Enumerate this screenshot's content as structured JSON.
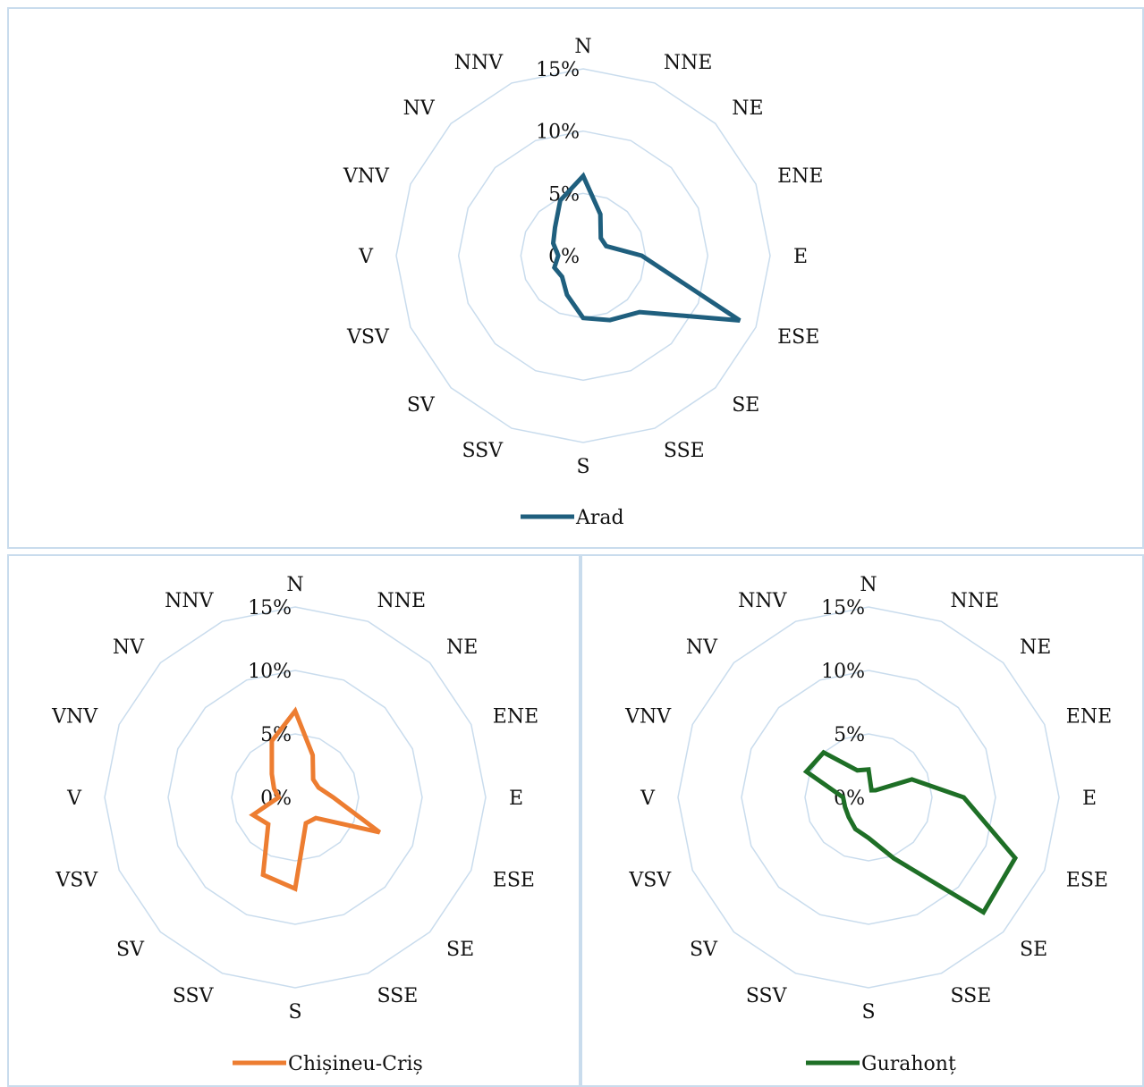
{
  "chart_data": [
    {
      "type": "radar",
      "categories": [
        "N",
        "NNE",
        "NE",
        "ENE",
        "E",
        "ESE",
        "SE",
        "SSE",
        "S",
        "SSV",
        "SV",
        "VSV",
        "V",
        "VNV",
        "NV",
        "NNV"
      ],
      "radial_ticks": [
        "0%",
        "5%",
        "10%",
        "15%"
      ],
      "rlim": [
        0,
        15
      ],
      "legend_position": "bottom",
      "series": [
        {
          "name": "Arad",
          "color": "#1f5f7e",
          "values": [
            6.4,
            3.6,
            2.0,
            2.0,
            4.7,
            13.6,
            6.4,
            5.6,
            5.0,
            3.4,
            2.4,
            2.5,
            2.0,
            2.6,
            3.2,
            4.8
          ]
        }
      ]
    },
    {
      "type": "radar",
      "categories": [
        "N",
        "NNE",
        "NE",
        "ENE",
        "E",
        "ESE",
        "SE",
        "SSE",
        "S",
        "SSV",
        "SV",
        "VSV",
        "V",
        "VNV",
        "NV",
        "NNV"
      ],
      "radial_ticks": [
        "0%",
        "5%",
        "10%",
        "15%"
      ],
      "rlim": [
        0,
        15
      ],
      "legend_position": "bottom",
      "series": [
        {
          "name": "Chișineu-Criș",
          "color": "#ed7d31",
          "values": [
            6.8,
            3.6,
            2.0,
            2.0,
            3.0,
            7.2,
            2.3,
            2.2,
            7.2,
            6.6,
            3.0,
            3.6,
            1.3,
            1.8,
            2.6,
            4.8
          ]
        }
      ]
    },
    {
      "type": "radar",
      "categories": [
        "N",
        "NNE",
        "NE",
        "ENE",
        "E",
        "ESE",
        "SE",
        "SSE",
        "S",
        "SSV",
        "SV",
        "VSV",
        "V",
        "VNV",
        "NV",
        "NNV"
      ],
      "radial_ticks": [
        "0%",
        "5%",
        "10%",
        "15%"
      ],
      "rlim": [
        0,
        15
      ],
      "legend_position": "bottom",
      "series": [
        {
          "name": "Gurahonț",
          "color": "#1e6f26",
          "values": [
            2.2,
            0.6,
            0.8,
            3.7,
            7.5,
            12.5,
            12.8,
            5.2,
            3.2,
            2.7,
            2.2,
            2.0,
            2.0,
            5.3,
            5.0,
            2.3
          ]
        }
      ]
    }
  ]
}
